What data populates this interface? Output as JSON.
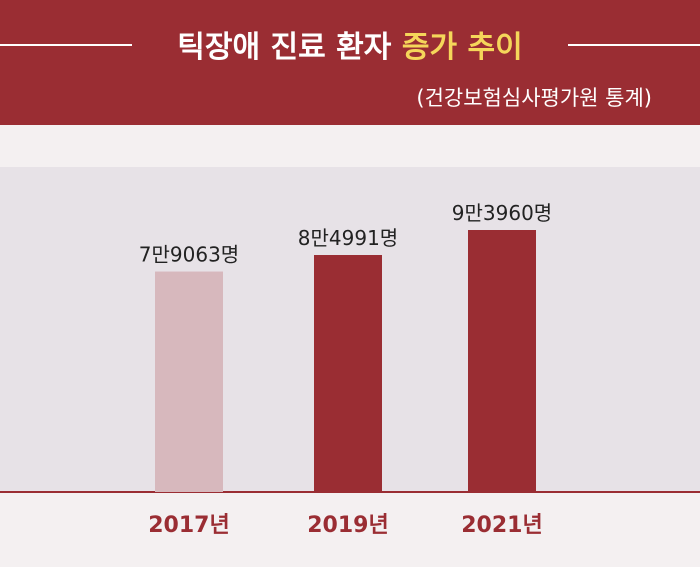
{
  "header": {
    "title_main": "틱장애 진료 환자",
    "title_highlight": "증가 추이",
    "source": "(건강보험심사평가원 통계)"
  },
  "colors": {
    "header_bg": "#9a2d33",
    "highlight": "#f5d65a",
    "bar_primary": "#9a2d33",
    "bar_faded": "#d7b8bd",
    "plot_bg": "#e7e2e7"
  },
  "chart_data": {
    "type": "bar",
    "title": "틱장애 진료 환자 증가 추이",
    "subtitle": "(건강보험심사평가원 통계)",
    "categories": [
      "2017년",
      "2019년",
      "2021년"
    ],
    "values": [
      79063,
      84991,
      93960
    ],
    "value_labels": [
      "7만9063명",
      "8만4991명",
      "9만3960명"
    ],
    "ylim": [
      0,
      100000
    ],
    "grid": false,
    "legend": "none"
  }
}
